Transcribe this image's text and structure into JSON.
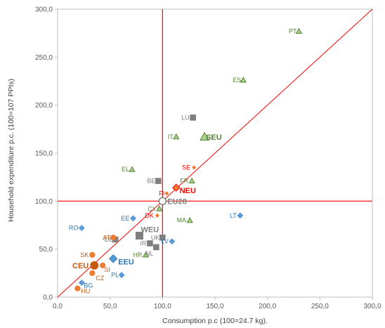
{
  "chart_data": {
    "type": "scatter",
    "xlabel": "Consumption p.c (100=24.7 kg).",
    "ylabel": "Household expenditure  p.c. (100=107 PPIs)",
    "xlim": [
      0,
      300
    ],
    "ylim": [
      0,
      300
    ],
    "x_ticks": [
      "0,0",
      "50,0",
      "100,0",
      "150,0",
      "200,0",
      "250,0",
      "300,0"
    ],
    "y_ticks": [
      "0,0",
      "50,0",
      "100,0",
      "150,0",
      "200,0",
      "250,0",
      "300,0"
    ],
    "reference_lines": {
      "vertical_x": 100,
      "horizontal_y": 100,
      "diagonal": true
    },
    "colors": {
      "grey": "#7f7f7f",
      "orange": "#ed7d31",
      "green": "#70ad47",
      "blue": "#5b9bd5",
      "red": "#ff0000",
      "darkblue": "#2e75b6",
      "darkgreen": "#548235",
      "darkorange": "#c55a11",
      "axis": "#bfbfbf"
    },
    "points": [
      {
        "label": "PT",
        "x": 230,
        "y": 277,
        "group": "SEU"
      },
      {
        "label": "ES",
        "x": 177,
        "y": 226,
        "group": "SEU"
      },
      {
        "label": "IT",
        "x": 113,
        "y": 167,
        "group": "SEU"
      },
      {
        "label": "EL",
        "x": 71,
        "y": 133,
        "group": "SEU"
      },
      {
        "label": "CY",
        "x": 97,
        "y": 92,
        "group": "SEU"
      },
      {
        "label": "FR",
        "x": 128,
        "y": 121,
        "group": "SEU"
      },
      {
        "label": "MA",
        "x": 126,
        "y": 80,
        "group": "SEU"
      },
      {
        "label": "HR",
        "x": 84,
        "y": 44,
        "group": "SEU"
      },
      {
        "label": "LU",
        "x": 129,
        "y": 187,
        "group": "WEU"
      },
      {
        "label": "BE",
        "x": 96,
        "y": 121,
        "group": "WEU"
      },
      {
        "label": "DE",
        "x": 55,
        "y": 60,
        "group": "WEU"
      },
      {
        "label": "UK",
        "x": 100,
        "y": 62,
        "group": "WEU"
      },
      {
        "label": "IR",
        "x": 88,
        "y": 56,
        "group": "WEU"
      },
      {
        "label": "NL",
        "x": 94,
        "y": 52,
        "group": "WEU"
      },
      {
        "label": "SE",
        "x": 130,
        "y": 135,
        "group": "NEU"
      },
      {
        "label": "FI",
        "x": 104,
        "y": 108,
        "group": "NEU"
      },
      {
        "label": "DK",
        "x": 95,
        "y": 85,
        "group": "NEU"
      },
      {
        "label": "AT",
        "x": 53,
        "y": 62,
        "group": "CEU"
      },
      {
        "label": "SK",
        "x": 33,
        "y": 44,
        "group": "CEU"
      },
      {
        "label": "SI",
        "x": 43,
        "y": 33,
        "group": "CEU"
      },
      {
        "label": "CZ",
        "x": 33,
        "y": 25,
        "group": "CEU"
      },
      {
        "label": "HU",
        "x": 19,
        "y": 9,
        "group": "CEU"
      },
      {
        "label": "RO",
        "x": 23,
        "y": 72,
        "group": "EEU"
      },
      {
        "label": "EE",
        "x": 72,
        "y": 82,
        "group": "EEU"
      },
      {
        "label": "LT",
        "x": 174,
        "y": 85,
        "group": "EEU"
      },
      {
        "label": "LV",
        "x": 109,
        "y": 58,
        "group": "EEU"
      },
      {
        "label": "PL",
        "x": 61,
        "y": 23,
        "group": "EEU"
      },
      {
        "label": "BG",
        "x": 23,
        "y": 15,
        "group": "EEU"
      }
    ],
    "aggregates": [
      {
        "label": "SEU",
        "x": 140,
        "y": 167,
        "marker": "triangle"
      },
      {
        "label": "WEU",
        "x": 78,
        "y": 64,
        "marker": "square"
      },
      {
        "label": "NEU",
        "x": 113,
        "y": 114,
        "marker": "diamond"
      },
      {
        "label": "CEU",
        "x": 35,
        "y": 33,
        "marker": "circle"
      },
      {
        "label": "EEU",
        "x": 53,
        "y": 40,
        "marker": "diamond"
      },
      {
        "label": "EU28",
        "x": 100,
        "y": 100,
        "marker": "circle-open"
      }
    ]
  }
}
